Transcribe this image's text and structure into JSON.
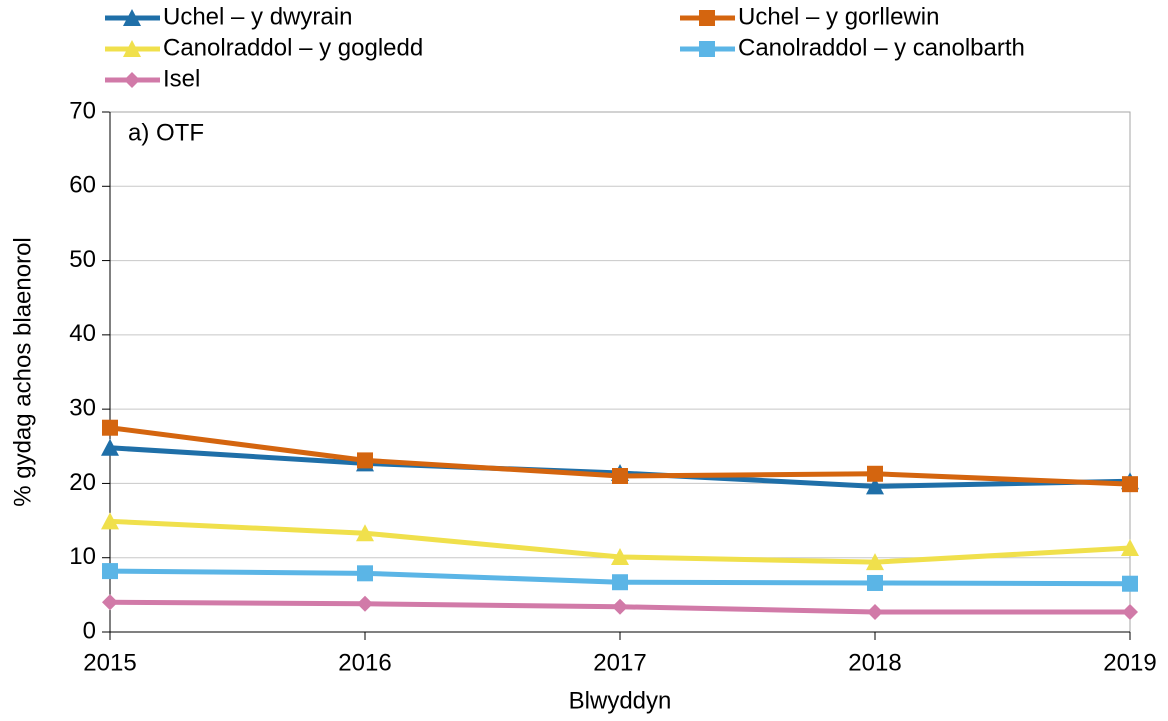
{
  "chart_data": {
    "type": "line",
    "annotation": "a) OTF",
    "xlabel": "Blwyddyn",
    "ylabel": "% gydag achos blaenorol",
    "x": [
      2015,
      2016,
      2017,
      2018,
      2019
    ],
    "xlim": [
      2015,
      2019
    ],
    "xticks": [
      2015,
      2016,
      2017,
      2018,
      2019
    ],
    "ylim": [
      0,
      70
    ],
    "yticks": [
      0,
      10,
      20,
      30,
      40,
      50,
      60,
      70
    ],
    "grid": true,
    "series": [
      {
        "name": "Uchel – y dwyrain",
        "color": "#1f6fa8",
        "marker": "triangle",
        "values": [
          24.8,
          22.7,
          21.4,
          19.6,
          20.3
        ]
      },
      {
        "name": "Uchel – y gorllewin",
        "color": "#d4650f",
        "marker": "square",
        "values": [
          27.5,
          23.1,
          21.0,
          21.3,
          19.9
        ]
      },
      {
        "name": "Canolraddol – y gogledd",
        "color": "#f0e04c",
        "marker": "triangle",
        "values": [
          14.9,
          13.3,
          10.1,
          9.4,
          11.3
        ]
      },
      {
        "name": "Canolraddol – y canolbarth",
        "color": "#5bb5e6",
        "marker": "square",
        "values": [
          8.2,
          7.9,
          6.7,
          6.6,
          6.5
        ]
      },
      {
        "name": "Isel",
        "color": "#d17aa8",
        "marker": "diamond",
        "values": [
          4.0,
          3.8,
          3.4,
          2.7,
          2.7
        ]
      }
    ]
  }
}
